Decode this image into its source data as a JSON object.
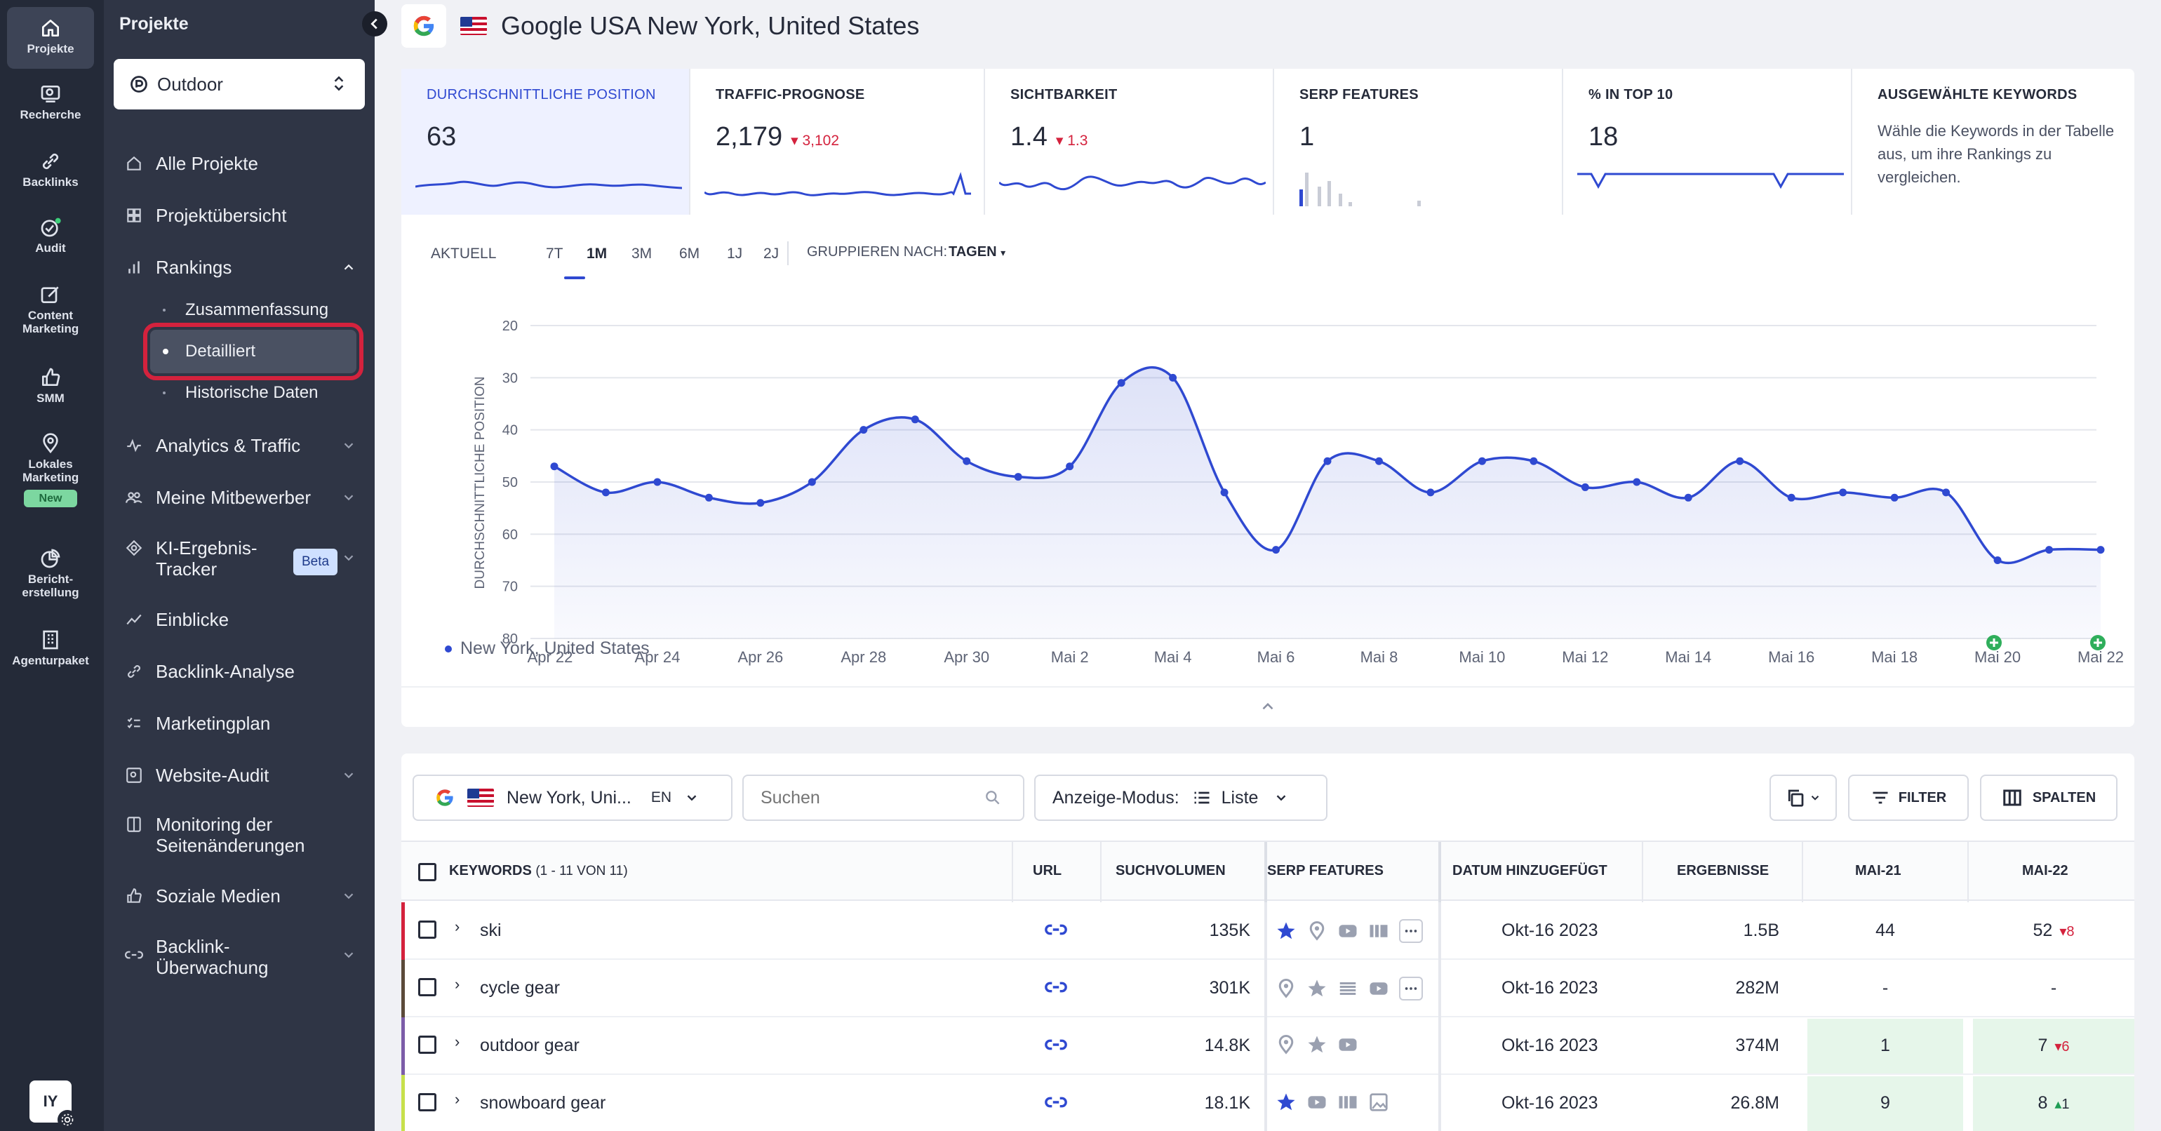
{
  "rail": {
    "items": [
      {
        "label": "Projekte",
        "icon": "home-icon"
      },
      {
        "label": "Recherche",
        "icon": "research-icon"
      },
      {
        "label": "Backlinks",
        "icon": "link-icon"
      },
      {
        "label": "Audit",
        "icon": "audit-check-icon"
      },
      {
        "label": "Content Marketing",
        "icon": "edit-icon"
      },
      {
        "label": "SMM",
        "icon": "thumbs-up-icon"
      },
      {
        "label": "Lokales Marketing",
        "icon": "map-pin-icon"
      },
      {
        "label": "Bericht-erstellung",
        "icon": "report-icon"
      },
      {
        "label": "Agenturpaket",
        "icon": "building-icon"
      }
    ],
    "new_badge": "New",
    "avatar_initials": "IY"
  },
  "nav": {
    "title": "Projekte",
    "project": "Outdoor",
    "items": [
      {
        "label": "Alle Projekte"
      },
      {
        "label": "Projektübersicht"
      },
      {
        "label": "Rankings"
      },
      {
        "label": "Analytics & Traffic"
      },
      {
        "label": "Meine Mitbewerber"
      },
      {
        "label": "KI-Ergebnis-Tracker"
      },
      {
        "label": "Einblicke"
      },
      {
        "label": "Backlink-Analyse"
      },
      {
        "label": "Marketingplan"
      },
      {
        "label": "Website-Audit"
      },
      {
        "label": "Monitoring der Seitenänderungen"
      },
      {
        "label": "Soziale Medien"
      },
      {
        "label": "Backlink-Überwachung"
      }
    ],
    "sub_items": [
      {
        "label": "Zusammenfassung"
      },
      {
        "label": "Detailliert"
      },
      {
        "label": "Historische Daten"
      }
    ],
    "beta": "Beta"
  },
  "header": {
    "title": "Google USA New York, United States"
  },
  "metrics": [
    {
      "label": "DURCHSCHNITTLICHE POSITION",
      "value": "63",
      "delta": ""
    },
    {
      "label": "TRAFFIC-PROGNOSE",
      "value": "2,179",
      "delta": "3,102"
    },
    {
      "label": "SICHTBARKEIT",
      "value": "1.4",
      "delta": "1.3"
    },
    {
      "label": "SERP FEATURES",
      "value": "1",
      "delta": ""
    },
    {
      "label": "% IN TOP 10",
      "value": "18",
      "delta": ""
    },
    {
      "label": "AUSGEWÄHLTE KEYWORDS",
      "value": "",
      "delta": "",
      "desc": "Wähle die Keywords in der Tabelle aus, um ihre Rankings zu vergleichen."
    }
  ],
  "controls": {
    "ranges": [
      "AKTUELL",
      "7T",
      "1M",
      "3M",
      "6M",
      "1J",
      "2J"
    ],
    "active_range": "1M",
    "group_label": "GRUPPIEREN NACH:",
    "group_value": "TAGEN"
  },
  "chart_data": {
    "type": "area",
    "ylabel": "DURCHSCHNITTLICHE POSITION",
    "y_inverted": true,
    "ylim": [
      20,
      80
    ],
    "yticks": [
      20,
      30,
      40,
      50,
      60,
      70,
      80
    ],
    "x_ticks": [
      "Apr 22",
      "Apr 24",
      "Apr 26",
      "Apr 28",
      "Apr 30",
      "Mai 2",
      "Mai 4",
      "Mai 6",
      "Mai 8",
      "Mai 10",
      "Mai 12",
      "Mai 14",
      "Mai 16",
      "Mai 18",
      "Mai 20",
      "Mai 22"
    ],
    "series": [
      {
        "name": "New York, United States",
        "values": [
          47,
          52,
          50,
          53,
          54,
          50,
          40,
          38,
          46,
          49,
          47,
          31,
          30,
          52,
          63,
          46,
          46,
          52,
          46,
          46,
          51,
          50,
          53,
          46,
          53,
          52,
          53,
          52,
          65,
          63,
          63
        ]
      }
    ],
    "annotations_at": [
      "Mai 20",
      "Mai 22"
    ]
  },
  "toolbar": {
    "location": "New York, Uni...",
    "lang": "EN",
    "search_placeholder": "Suchen",
    "display_mode_label": "Anzeige-Modus:",
    "display_mode_value": "Liste",
    "filter": "FILTER",
    "columns": "SPALTEN"
  },
  "table": {
    "headers": {
      "keywords": "KEYWORDS",
      "keywords_count": "(1 - 11 VON 11)",
      "url": "URL",
      "volume": "SUCHVOLUMEN",
      "serp": "SERP FEATURES",
      "date": "DATUM HINZUGEFÜGT",
      "results": "ERGEBNISSE",
      "d1": "MAI-21",
      "d2": "MAI-22"
    },
    "rows": [
      {
        "keyword": "ski",
        "volume": "135K",
        "date": "Okt-16 2023",
        "results": "1.5B",
        "d1": "44",
        "d2": "52",
        "d2_delta": "8",
        "accent": "#d4223d"
      },
      {
        "keyword": "cycle gear",
        "volume": "301K",
        "date": "Okt-16 2023",
        "results": "282M",
        "d1": "-",
        "d2": "-",
        "d2_delta": "",
        "accent": "#5b4a3a"
      },
      {
        "keyword": "outdoor gear",
        "volume": "14.8K",
        "date": "Okt-16 2023",
        "results": "374M",
        "d1": "1",
        "d2": "7",
        "d2_delta": "6",
        "accent": "#7c5ca8"
      },
      {
        "keyword": "snowboard gear",
        "volume": "18.1K",
        "date": "Okt-16 2023",
        "results": "26.8M",
        "d1": "9",
        "d2": "8",
        "d2_delta": "1",
        "accent": "#c7e04b"
      }
    ]
  }
}
